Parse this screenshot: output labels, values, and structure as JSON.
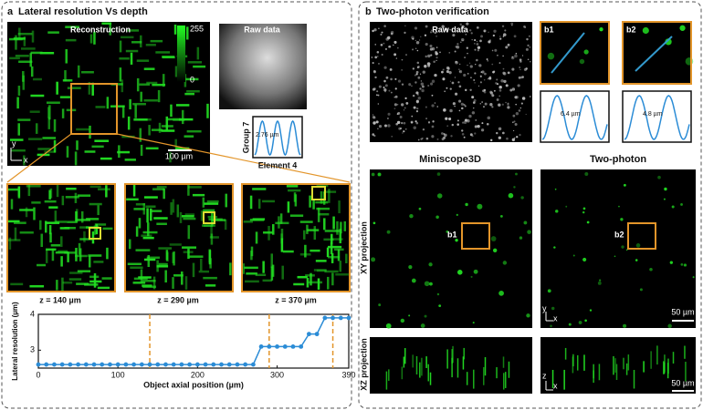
{
  "panel_a": {
    "label": "a",
    "title": "Lateral resolution Vs depth",
    "reconstruction": "Reconstruction",
    "colorbar_max": "255",
    "colorbar_min": "0",
    "scale_bar": "100 µm",
    "axis_y": "y",
    "axis_x": "x",
    "raw_data": "Raw data",
    "inset_value": "2.76 µm",
    "inset_ylabel": "Group 7",
    "inset_xlabel": "Element 4",
    "depths": [
      "z = 140 µm",
      "z = 290 µm",
      "z = 370 µm"
    ]
  },
  "panel_b": {
    "label": "b",
    "title": "Two-photon verification",
    "raw_data": "Raw data",
    "b1": "b1",
    "b2": "b2",
    "b1_value": "6.4 µm",
    "b2_value": "4.8 µm",
    "columns": [
      "Miniscope3D",
      "Two-photon"
    ],
    "rows": [
      "XY projection",
      "XZ projection"
    ],
    "roi_labels": [
      "b1",
      "b2"
    ],
    "scale_bars": [
      "50 µm",
      "50 µm"
    ],
    "xy_axes": [
      "y",
      "x"
    ],
    "xz_axes": [
      "z",
      "x"
    ]
  },
  "chart_data": {
    "type": "line",
    "ylabel": "Lateral resolution (µm)",
    "xlabel": "Object axial position (µm)",
    "x": [
      0,
      10,
      20,
      30,
      40,
      50,
      60,
      70,
      80,
      90,
      100,
      110,
      120,
      130,
      140,
      150,
      160,
      170,
      180,
      190,
      200,
      210,
      220,
      230,
      240,
      250,
      260,
      270,
      280,
      290,
      300,
      310,
      320,
      330,
      340,
      350,
      360,
      370,
      380,
      390
    ],
    "values": [
      2.6,
      2.6,
      2.6,
      2.6,
      2.6,
      2.6,
      2.6,
      2.6,
      2.6,
      2.6,
      2.6,
      2.6,
      2.6,
      2.6,
      2.6,
      2.6,
      2.6,
      2.6,
      2.6,
      2.6,
      2.6,
      2.6,
      2.6,
      2.6,
      2.6,
      2.6,
      2.6,
      2.6,
      3.1,
      3.1,
      3.1,
      3.1,
      3.1,
      3.1,
      3.45,
      3.45,
      3.9,
      3.9,
      3.9,
      3.9
    ],
    "color": "#2b8cd6",
    "xlim": [
      0,
      390
    ],
    "xticks": [
      0,
      100,
      200,
      300,
      390
    ],
    "ylim": [
      2.5,
      4
    ],
    "yticks": [
      3,
      4
    ],
    "markers": [
      140,
      290,
      370
    ],
    "marker_color": "#e3952a"
  }
}
